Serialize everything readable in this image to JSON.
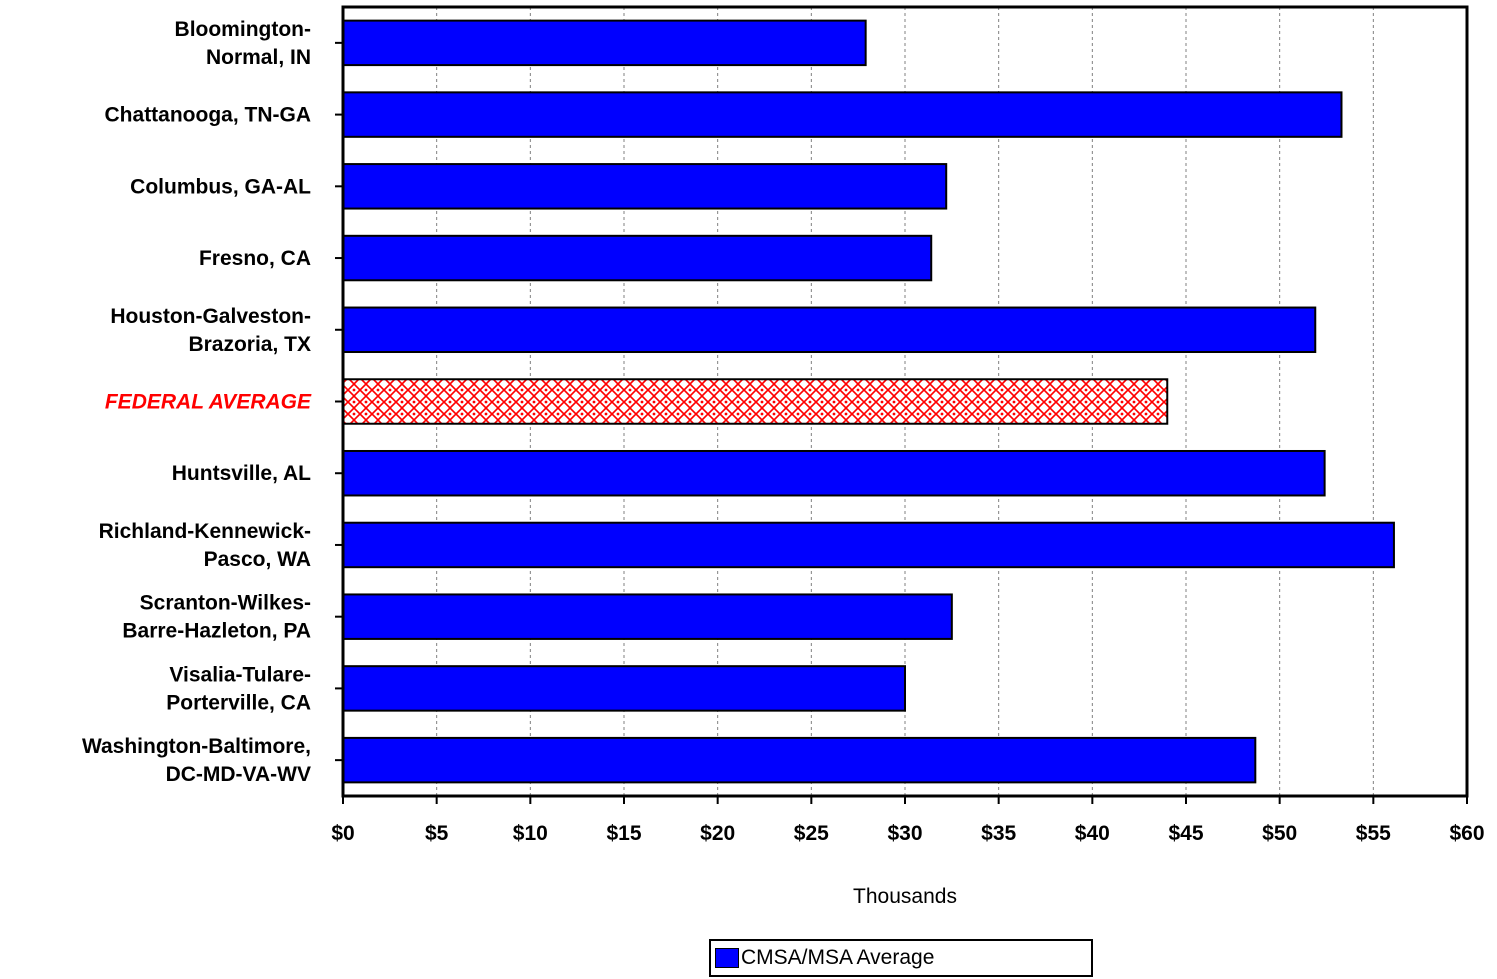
{
  "chart_data": {
    "type": "bar",
    "orientation": "horizontal",
    "categories": [
      "Bloomington-\nNormal, IN",
      "Chattanooga, TN-GA",
      "Columbus, GA-AL",
      "Fresno, CA",
      "Houston-Galveston-\nBrazoria, TX",
      "FEDERAL AVERAGE",
      "Huntsville, AL",
      "Richland-Kennewick-\nPasco, WA",
      "Scranton-Wilkes-\nBarre-Hazleton, PA",
      "Visalia-Tulare-\nPorterville, CA",
      "Washington-Baltimore,\nDC-MD-VA-WV"
    ],
    "values": [
      27.9,
      53.3,
      32.2,
      31.4,
      51.9,
      44.0,
      52.4,
      56.1,
      32.5,
      30.0,
      48.7
    ],
    "highlight_category": "FEDERAL AVERAGE",
    "colors": {
      "bar": "#0000ff",
      "highlight_bar": "#ff0000",
      "highlight_label": "#ff0000",
      "gridline": "#808080"
    },
    "x_ticks": [
      "$0",
      "$5",
      "$10",
      "$15",
      "$20",
      "$25",
      "$30",
      "$35",
      "$40",
      "$45",
      "$50",
      "$55",
      "$60"
    ],
    "xlim": [
      0,
      60
    ],
    "xlabel": "Thousands",
    "grid": "vertical dashed",
    "legend": {
      "position": "bottom",
      "entries": [
        "CMSA/MSA Average"
      ]
    }
  }
}
